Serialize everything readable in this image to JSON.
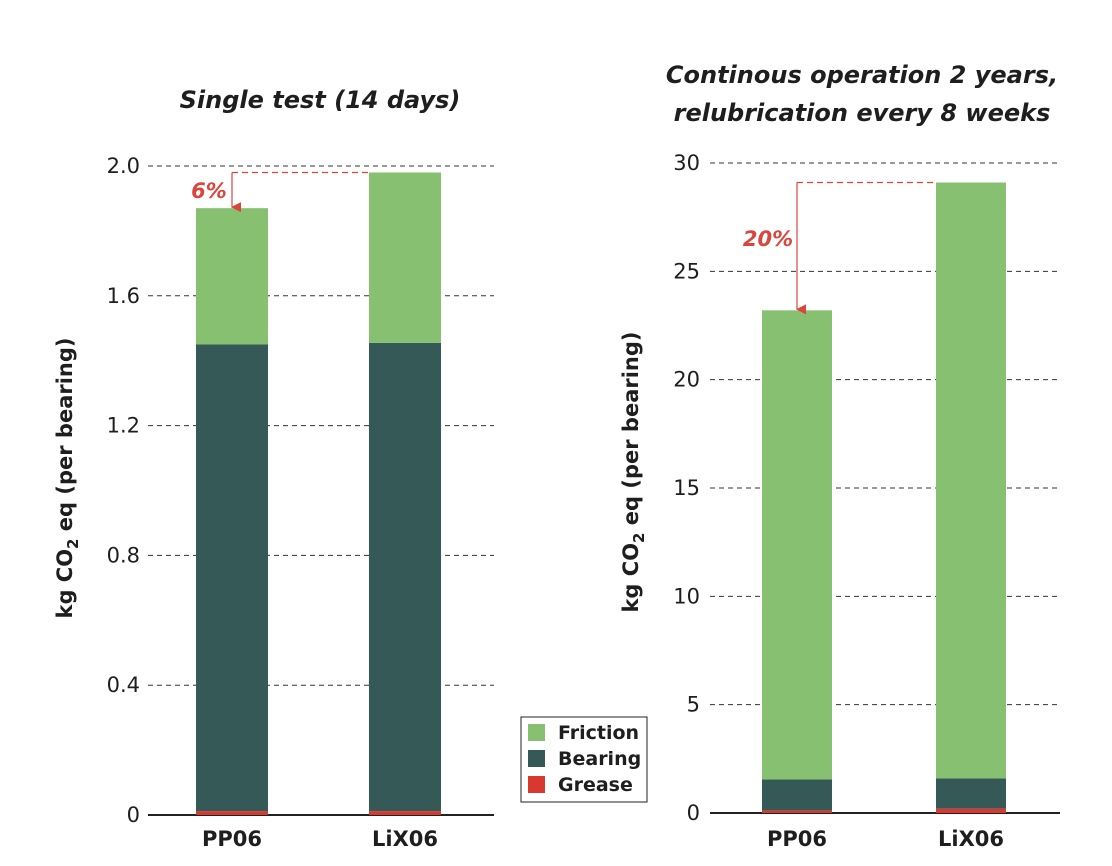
{
  "colors": {
    "Friction": "#86c070",
    "Bearing": "#355956",
    "Grease": "#d8382e",
    "annotation": "#d8463c"
  },
  "legend": {
    "entries": [
      {
        "name": "Friction",
        "color": "#86c070"
      },
      {
        "name": "Bearing",
        "color": "#355956"
      },
      {
        "name": "Grease",
        "color": "#d8382e"
      }
    ]
  },
  "chart_data": [
    {
      "type": "bar",
      "stacked": true,
      "title": [
        "Single test (14 days)"
      ],
      "ylabel": "kg CO2 eq (per bearing)",
      "categories": [
        "PP06",
        "LiX06"
      ],
      "ylim": [
        0,
        2.0
      ],
      "yticks": [
        0,
        0.4,
        0.8,
        1.2,
        1.6,
        2.0
      ],
      "ytick_labels": [
        "0",
        "0.4",
        "0.8",
        "1.2",
        "1.6",
        "2.0"
      ],
      "grid": true,
      "series": [
        {
          "name": "Grease",
          "values": [
            0.012,
            0.012
          ]
        },
        {
          "name": "Bearing",
          "values": [
            1.438,
            1.443
          ]
        },
        {
          "name": "Friction",
          "values": [
            0.42,
            0.525
          ]
        }
      ],
      "annotation": {
        "text": "6%",
        "from": "LiX06",
        "to": "PP06"
      }
    },
    {
      "type": "bar",
      "stacked": true,
      "title": [
        "Continous operation 2 years,",
        "relubrication every 8 weeks"
      ],
      "ylabel": "kg CO2 eq (per bearing)",
      "categories": [
        "PP06",
        "LiX06"
      ],
      "ylim": [
        0,
        30
      ],
      "yticks": [
        0,
        5,
        10,
        15,
        20,
        25,
        30
      ],
      "ytick_labels": [
        "0",
        "5",
        "10",
        "15",
        "20",
        "25",
        "30"
      ],
      "grid": true,
      "series": [
        {
          "name": "Grease",
          "values": [
            0.12,
            0.2
          ]
        },
        {
          "name": "Bearing",
          "values": [
            1.43,
            1.4
          ]
        },
        {
          "name": "Friction",
          "values": [
            21.65,
            27.5
          ]
        }
      ],
      "annotation": {
        "text": "20%",
        "from": "LiX06",
        "to": "PP06"
      }
    }
  ]
}
